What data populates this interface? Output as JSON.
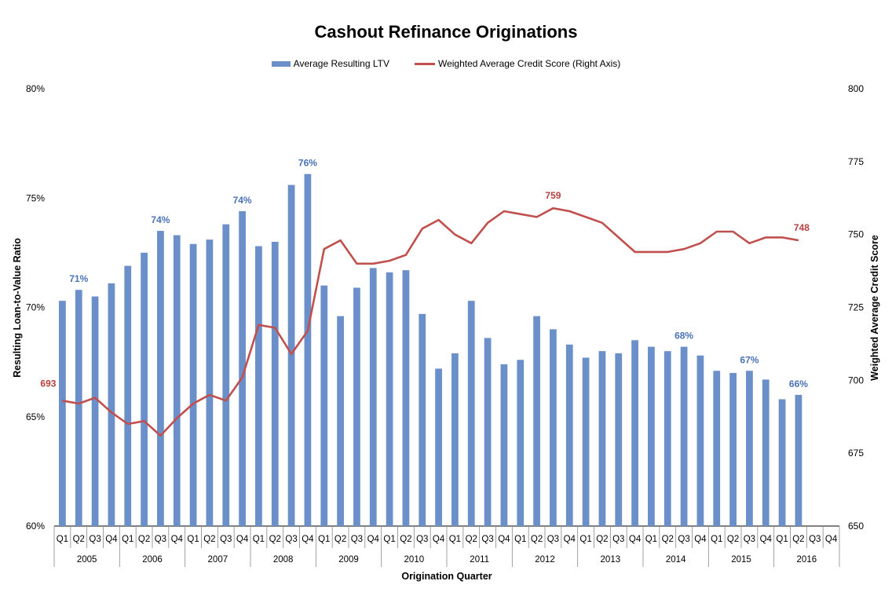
{
  "chart_data": {
    "type": "bar+line",
    "title": "Cashout Refinance Originations",
    "xlabel": "Origination Quarter",
    "ylabel": "Resulting Loan-to-Value Ratio",
    "y2label": "Weighted Average Credit Score",
    "ylim": [
      60,
      80
    ],
    "y2lim": [
      650,
      800
    ],
    "yticks": [
      "60%",
      "65%",
      "70%",
      "75%",
      "80%"
    ],
    "y2ticks": [
      "650",
      "675",
      "700",
      "725",
      "750",
      "775",
      "800"
    ],
    "years": [
      "2005",
      "2006",
      "2007",
      "2008",
      "2009",
      "2010",
      "2011",
      "2012",
      "2013",
      "2014",
      "2015",
      "2016"
    ],
    "quarters": [
      "Q1",
      "Q2",
      "Q3",
      "Q4"
    ],
    "legend_position": "top-center",
    "grid": false,
    "series": [
      {
        "name": "Average Resulting LTV",
        "kind": "bar",
        "axis": "left",
        "color": "#6a8fc9",
        "label_color": "#4a72b5",
        "values": [
          70.3,
          70.8,
          70.5,
          71.1,
          71.9,
          72.5,
          73.5,
          73.3,
          72.9,
          73.1,
          73.8,
          74.4,
          72.8,
          73.0,
          75.6,
          76.1,
          71.0,
          69.6,
          70.9,
          71.8,
          71.6,
          71.7,
          69.7,
          67.2,
          67.9,
          70.3,
          68.6,
          67.4,
          67.6,
          69.6,
          69.0,
          68.3,
          67.7,
          68.0,
          67.9,
          68.5,
          68.2,
          68.0,
          68.2,
          67.8,
          67.1,
          67.0,
          67.1,
          66.7,
          65.8,
          66.0,
          null,
          null
        ],
        "data_labels": [
          {
            "index": 1,
            "text": "71%"
          },
          {
            "index": 6,
            "text": "74%"
          },
          {
            "index": 11,
            "text": "74%"
          },
          {
            "index": 15,
            "text": "76%"
          },
          {
            "index": 38,
            "text": "68%"
          },
          {
            "index": 42,
            "text": "67%"
          },
          {
            "index": 45,
            "text": "66%"
          }
        ]
      },
      {
        "name": "Weighted Average Credit Score (Right Axis)",
        "kind": "line",
        "axis": "right",
        "color": "#c0504d",
        "label_color": "#b5413e",
        "values": [
          693,
          692,
          694,
          689,
          685,
          686,
          681,
          687,
          692,
          695,
          693,
          701,
          719,
          718,
          709,
          717,
          745,
          748,
          740,
          740,
          741,
          743,
          752,
          755,
          750,
          747,
          754,
          758,
          757,
          756,
          759,
          758,
          756,
          754,
          749,
          744,
          744,
          744,
          745,
          747,
          751,
          751,
          747,
          749,
          749,
          748,
          null,
          null
        ],
        "data_labels": [
          {
            "index": 0,
            "text": "693"
          },
          {
            "index": 30,
            "text": "759"
          },
          {
            "index": 45,
            "text": "748"
          }
        ]
      }
    ]
  }
}
